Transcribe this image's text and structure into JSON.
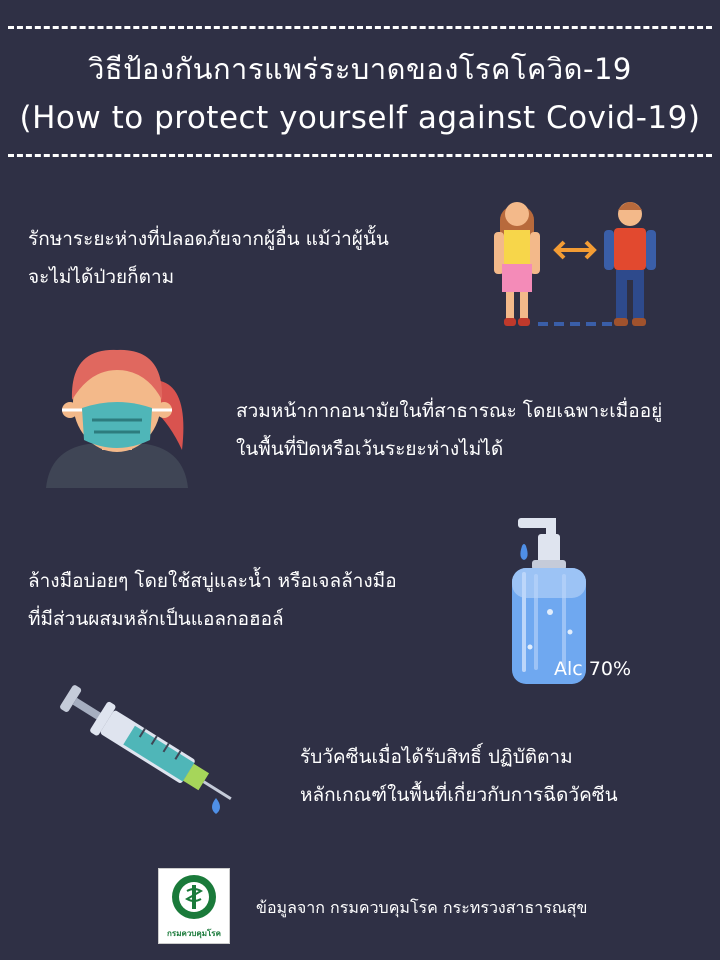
{
  "header": {
    "title_th": "วิธีป้องกันการแพร่ระบาดของโรคโควิด-19",
    "title_en": "(How to protect yourself against Covid-19)"
  },
  "tips": [
    {
      "line1": "รักษาระยะห่างที่ปลอดภัยจากผู้อื่น แม้ว่าผู้นั้น",
      "line2": "จะไม่ได้ป่วยก็ตาม",
      "icon": "social-distance-icon"
    },
    {
      "line1": "สวมหน้ากากอนามัยในที่สาธารณะ โดยเฉพาะเมื่ออยู่",
      "line2": "ในพื้นที่ปิดหรือเว้นระยะห่างไม่ได้",
      "icon": "face-mask-icon"
    },
    {
      "line1": "ล้างมือบ่อยๆ โดยใช้สบู่และน้ำ หรือเจลล้างมือ",
      "line2": "ที่มีส่วนผสมหลักเป็นแอลกอฮอล์",
      "icon": "hand-sanitizer-icon"
    },
    {
      "line1": "รับวัคซีนเมื่อได้รับสิทธิ์ ปฏิบัติตาม",
      "line2": "หลักเกณฑ์ในพื้นที่เกี่ยวกับการฉีดวัคซีน",
      "icon": "syringe-icon"
    }
  ],
  "sanitizer_label": "Alc 70%",
  "footer": {
    "logo_text": "กรมควบคุมโรค",
    "source": "ข้อมูลจาก กรมควบคุมโรค กระทรวงสาธารณสุข"
  },
  "colors": {
    "background": "#2f3045",
    "text": "#ffffff",
    "accent_orange": "#f39c34",
    "mask_teal": "#4fb6b8",
    "sanitizer_blue": "#6fa8f0"
  }
}
